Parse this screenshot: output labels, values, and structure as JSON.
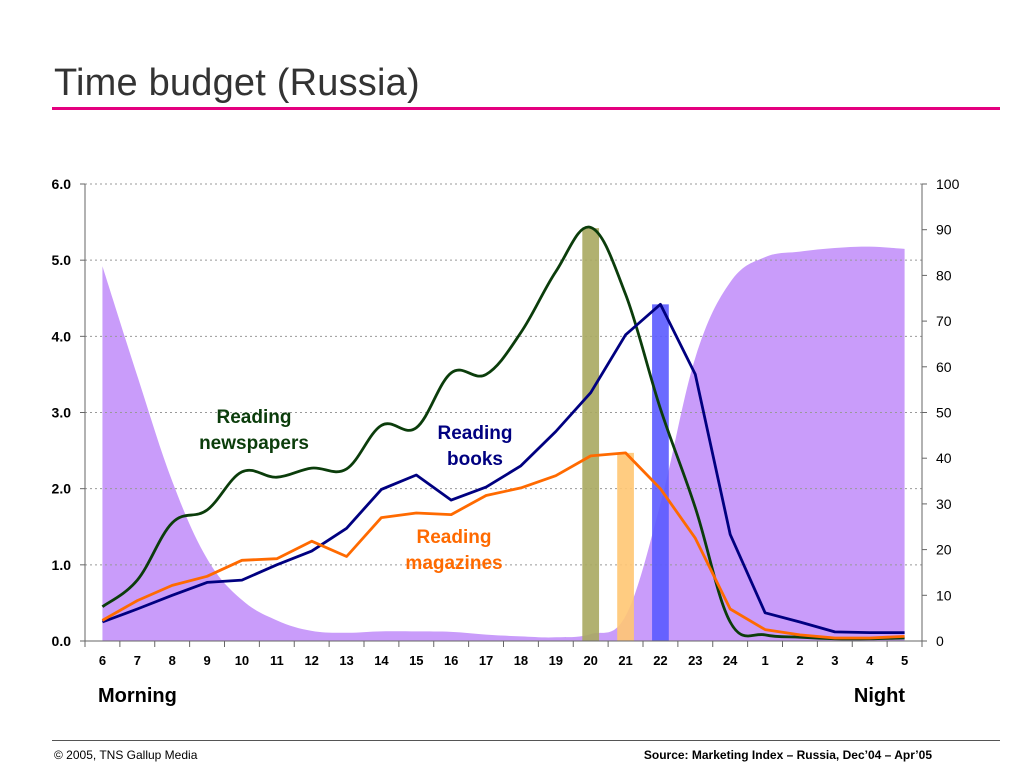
{
  "title": "Time budget (Russia)",
  "colors": {
    "title_rule": "#e4007f",
    "newspapers": "#0b3d0b",
    "books": "#000080",
    "magazines": "#ff6a00",
    "tv_area": "#c99cfa",
    "band_20": "#a8a860",
    "band_21": "#ffc773",
    "band_22": "#5b5bff"
  },
  "chart_data": {
    "type": "line",
    "categories": [
      "6",
      "7",
      "8",
      "9",
      "10",
      "11",
      "12",
      "13",
      "14",
      "15",
      "16",
      "17",
      "18",
      "19",
      "20",
      "21",
      "22",
      "23",
      "24",
      "1",
      "2",
      "3",
      "4",
      "5"
    ],
    "y_left": {
      "lim": [
        0,
        6
      ],
      "ticks": [
        "0.0",
        "1.0",
        "2.0",
        "3.0",
        "4.0",
        "5.0",
        "6.0"
      ]
    },
    "y_right": {
      "lim": [
        0,
        100
      ],
      "ticks": [
        "0",
        "10",
        "20",
        "30",
        "40",
        "50",
        "60",
        "70",
        "80",
        "90",
        "100"
      ]
    },
    "grid": true,
    "series": [
      {
        "name": "Reading newspapers",
        "label_lines": [
          "Reading",
          "newspapers"
        ],
        "color_key": "newspapers",
        "axis": "left",
        "values": [
          0.45,
          0.8,
          1.55,
          1.72,
          2.22,
          2.15,
          2.27,
          2.26,
          2.83,
          2.8,
          3.52,
          3.5,
          4.05,
          4.85,
          5.43,
          4.55,
          3.05,
          1.75,
          0.25,
          0.08,
          0.05,
          0.03,
          0.03,
          0.04
        ]
      },
      {
        "name": "Reading books",
        "label_lines": [
          "Reading",
          "books"
        ],
        "color_key": "books",
        "axis": "left",
        "values": [
          0.25,
          0.42,
          0.6,
          0.77,
          0.8,
          1.0,
          1.18,
          1.48,
          1.99,
          2.18,
          1.85,
          2.02,
          2.3,
          2.75,
          3.26,
          4.02,
          4.42,
          3.5,
          1.4,
          0.37,
          0.25,
          0.12,
          0.11,
          0.11
        ]
      },
      {
        "name": "Reading magazines",
        "label_lines": [
          "Reading",
          "magazines"
        ],
        "color_key": "magazines",
        "axis": "left",
        "values": [
          0.27,
          0.53,
          0.73,
          0.85,
          1.06,
          1.08,
          1.31,
          1.11,
          1.62,
          1.68,
          1.66,
          1.91,
          2.01,
          2.17,
          2.43,
          2.47,
          2.0,
          1.35,
          0.42,
          0.15,
          0.08,
          0.04,
          0.04,
          0.06
        ]
      },
      {
        "name": "",
        "type": "area",
        "color_key": "tv_area",
        "axis": "right",
        "values": [
          82,
          58,
          35,
          18,
          9,
          4.5,
          2.2,
          1.8,
          2.1,
          2.1,
          2.0,
          1.4,
          1.0,
          0.8,
          1.5,
          5.5,
          30,
          62,
          78.5,
          84,
          85.2,
          86,
          86.3,
          85.8
        ]
      }
    ],
    "bands": [
      {
        "category": "20",
        "color_key": "band_20",
        "top_left_value": 5.42
      },
      {
        "category": "21",
        "color_key": "band_21",
        "top_left_value": 2.47
      },
      {
        "category": "22",
        "color_key": "band_22",
        "top_left_value": 4.42
      }
    ],
    "annotations": {
      "left": "Morning",
      "right": "Night"
    }
  },
  "footer": {
    "copyright": "© 2005, TNS Gallup Media",
    "source": "Source: Marketing Index – Russia, Dec’04 – Apr’05"
  }
}
